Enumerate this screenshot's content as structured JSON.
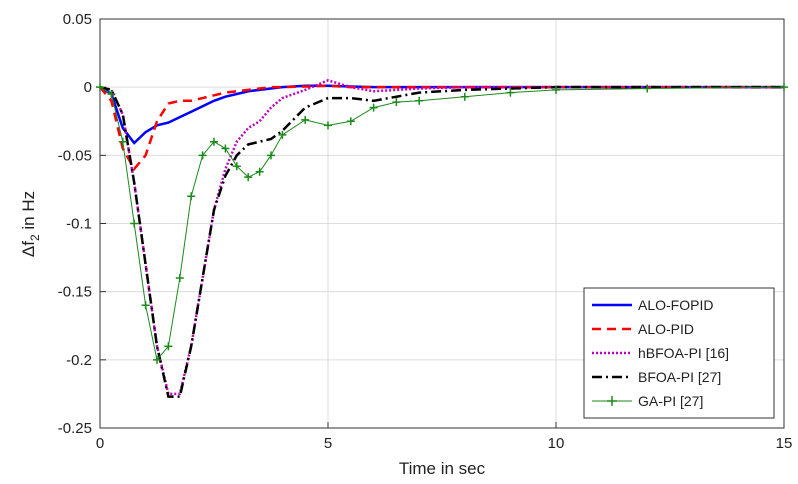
{
  "chart_data": {
    "type": "line",
    "xlabel": "Time in sec",
    "ylabel": {
      "main": "Δf",
      "sub": "2",
      "unit": " in Hz"
    },
    "x": [
      0,
      0.25,
      0.5,
      0.75,
      1,
      1.25,
      1.5,
      1.75,
      2,
      2.25,
      2.5,
      2.75,
      3,
      3.25,
      3.5,
      3.75,
      4,
      4.5,
      5,
      5.5,
      6,
      6.5,
      7,
      8,
      9,
      10,
      12,
      15
    ],
    "series": [
      {
        "name": "ALO-FOPID",
        "color": "#0000ff",
        "dash": "solid",
        "width": 2.5,
        "values": [
          0,
          -0.005,
          -0.03,
          -0.041,
          -0.033,
          -0.028,
          -0.026,
          -0.022,
          -0.018,
          -0.014,
          -0.01,
          -0.007,
          -0.005,
          -0.003,
          -0.002,
          -0.001,
          0,
          0.001,
          0.001,
          0.0005,
          0,
          0,
          0,
          0,
          0,
          0,
          0,
          0
        ]
      },
      {
        "name": "ALO-PID",
        "color": "#ff0000",
        "dash": "dashed",
        "width": 2.5,
        "values": [
          0,
          -0.01,
          -0.045,
          -0.06,
          -0.05,
          -0.025,
          -0.012,
          -0.01,
          -0.01,
          -0.008,
          -0.006,
          -0.004,
          -0.003,
          -0.002,
          -0.001,
          0,
          0,
          0.0005,
          0.001,
          0,
          0,
          0,
          0,
          0,
          0,
          0,
          0,
          0
        ]
      },
      {
        "name": "hBFOA-PI [16]",
        "color": "#bf00bf",
        "dash": "dotted",
        "width": 2.5,
        "values": [
          0,
          -0.002,
          -0.02,
          -0.07,
          -0.13,
          -0.19,
          -0.225,
          -0.225,
          -0.19,
          -0.14,
          -0.09,
          -0.06,
          -0.04,
          -0.03,
          -0.025,
          -0.015,
          -0.008,
          -0.002,
          0.005,
          0,
          -0.003,
          -0.002,
          -0.001,
          0,
          0,
          0,
          0,
          0
        ]
      },
      {
        "name": "BFOA-PI [27]",
        "color": "#000000",
        "dash": "dashdot",
        "width": 2.5,
        "values": [
          0,
          -0.002,
          -0.02,
          -0.07,
          -0.13,
          -0.19,
          -0.227,
          -0.227,
          -0.19,
          -0.14,
          -0.09,
          -0.065,
          -0.05,
          -0.042,
          -0.04,
          -0.038,
          -0.032,
          -0.015,
          -0.008,
          -0.008,
          -0.01,
          -0.007,
          -0.004,
          -0.002,
          -0.001,
          0,
          0,
          0
        ]
      },
      {
        "name": "GA-PI [27]",
        "color": "#1a8a1a",
        "dash": "solid",
        "width": 1,
        "marker": "+",
        "values": [
          0,
          -0.005,
          -0.04,
          -0.1,
          -0.16,
          -0.2,
          -0.19,
          -0.14,
          -0.08,
          -0.05,
          -0.04,
          -0.045,
          -0.058,
          -0.066,
          -0.062,
          -0.05,
          -0.035,
          -0.024,
          -0.028,
          -0.025,
          -0.015,
          -0.011,
          -0.01,
          -0.007,
          -0.004,
          -0.002,
          -0.001,
          0
        ]
      }
    ],
    "xlim": [
      0,
      15
    ],
    "xticks": [
      0,
      5,
      10,
      15
    ],
    "ylim": [
      -0.25,
      0.05
    ],
    "yticks": [
      0.05,
      0,
      -0.05,
      -0.1,
      -0.15,
      -0.2,
      -0.25
    ],
    "grid": true,
    "legend": "lower right"
  }
}
